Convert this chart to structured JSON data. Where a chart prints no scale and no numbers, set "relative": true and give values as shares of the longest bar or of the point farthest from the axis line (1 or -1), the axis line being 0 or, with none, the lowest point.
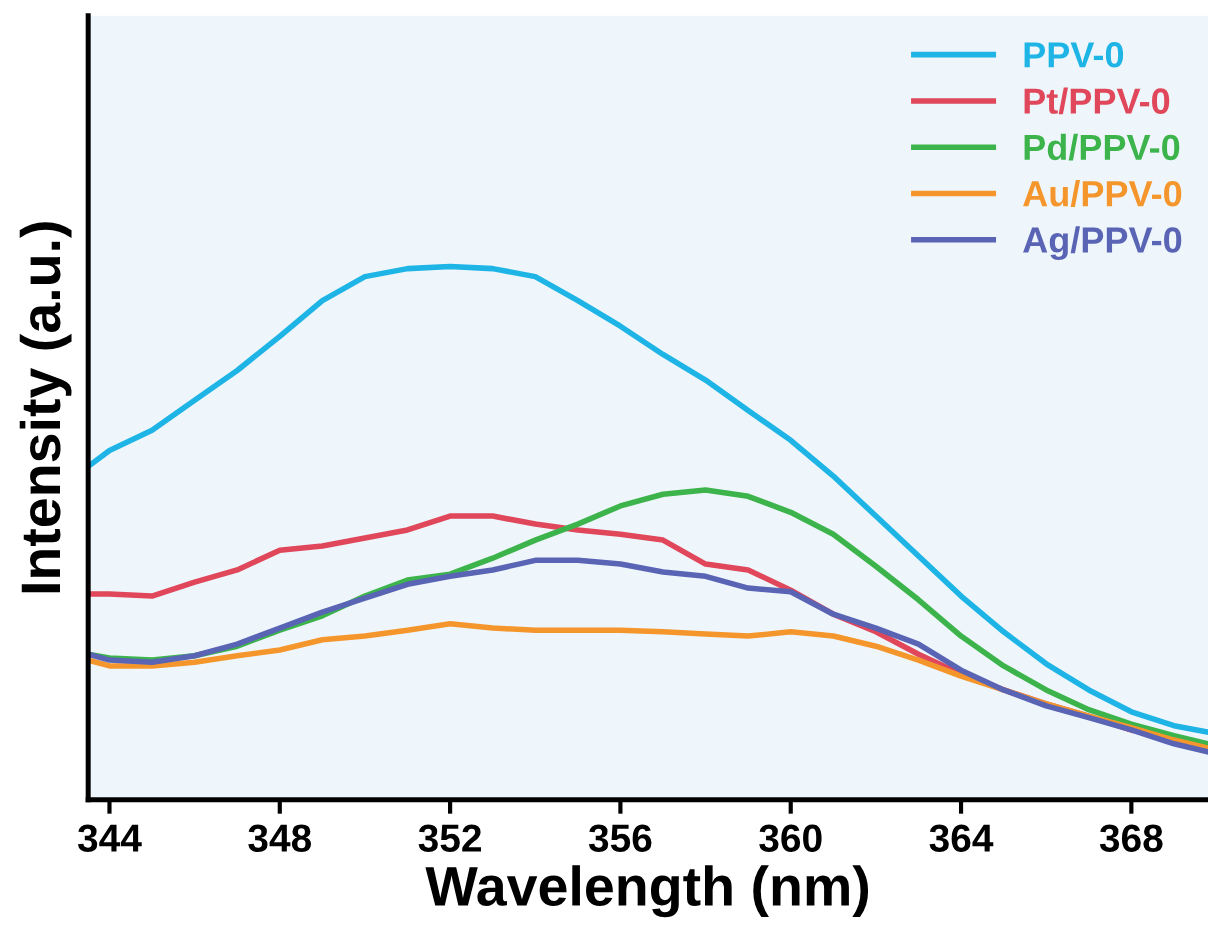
{
  "chart_data": {
    "type": "line",
    "xlabel": "Wavelength (nm)",
    "ylabel": "Intensity (a.u.)",
    "relative": true,
    "xlim": [
      343.5,
      369.8
    ],
    "xticks": [
      344,
      348,
      352,
      356,
      360,
      364,
      368
    ],
    "tick_labels": "x",
    "legend": "top right",
    "grid": false,
    "marker": "none",
    "line_style": "solid",
    "x": [
      343.5,
      344,
      345,
      346,
      347,
      348,
      349,
      350,
      351,
      352,
      353,
      354,
      355,
      356,
      357,
      358,
      359,
      360,
      361,
      362,
      363,
      364,
      365,
      366,
      367,
      368,
      369,
      369.8
    ],
    "series": [
      {
        "name": "PPV-0",
        "color": "#1eb4e6",
        "values": [
          0.625,
          0.655,
          0.693,
          0.749,
          0.805,
          0.869,
          0.936,
          0.981,
          0.996,
          1,
          0.996,
          0.981,
          0.936,
          0.888,
          0.835,
          0.787,
          0.73,
          0.674,
          0.607,
          0.532,
          0.457,
          0.382,
          0.315,
          0.255,
          0.206,
          0.165,
          0.139,
          0.127
        ]
      },
      {
        "name": "Pt/PPV-0",
        "color": "#e0475a",
        "values": [
          0.386,
          0.386,
          0.382,
          0.408,
          0.431,
          0.468,
          0.476,
          0.491,
          0.506,
          0.532,
          0.532,
          0.517,
          0.506,
          0.498,
          0.487,
          0.442,
          0.431,
          0.393,
          0.348,
          0.315,
          0.273,
          0.236,
          0.206,
          0.18,
          0.157,
          0.131,
          null,
          null
        ]
      },
      {
        "name": "Pd/PPV-0",
        "color": "#3cb44b",
        "values": [
          0.273,
          0.266,
          0.262,
          0.27,
          0.288,
          0.318,
          0.345,
          0.382,
          0.412,
          0.423,
          0.453,
          0.487,
          0.517,
          0.551,
          0.573,
          0.581,
          0.569,
          0.539,
          0.498,
          0.438,
          0.375,
          0.307,
          0.251,
          0.206,
          0.169,
          0.142,
          0.12,
          0.105
        ]
      },
      {
        "name": "Au/PPV-0",
        "color": "#f5962d",
        "values": [
          0.262,
          0.251,
          0.251,
          0.258,
          0.27,
          0.281,
          0.3,
          0.307,
          0.318,
          0.33,
          0.322,
          0.318,
          0.318,
          0.318,
          0.315,
          0.311,
          0.307,
          0.315,
          0.307,
          0.288,
          0.262,
          0.232,
          0.206,
          0.18,
          0.157,
          0.135,
          0.112,
          0.097
        ]
      },
      {
        "name": "Ag/PPV-0",
        "color": "#5a64b4",
        "values": [
          0.273,
          0.262,
          0.258,
          0.27,
          0.292,
          0.322,
          0.352,
          0.378,
          0.404,
          0.419,
          0.431,
          0.449,
          0.449,
          0.442,
          0.427,
          0.419,
          0.397,
          0.39,
          0.348,
          0.322,
          0.292,
          0.243,
          0.206,
          0.176,
          0.154,
          0.131,
          0.105,
          0.09
        ]
      }
    ]
  }
}
